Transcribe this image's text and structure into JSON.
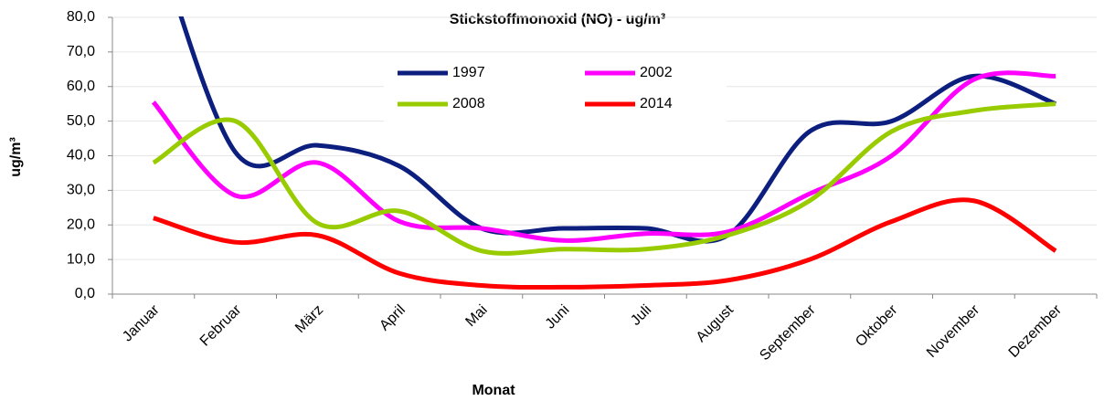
{
  "chart_data": {
    "type": "line",
    "title": "Stickstoffmonoxid (NO) - ug/m³",
    "x_label": "Monat",
    "y_label": "ug/m³",
    "categories": [
      "Januar",
      "Februar",
      "März",
      "April",
      "Mai",
      "Juni",
      "Juli",
      "August",
      "September",
      "Oktober",
      "November",
      "Dezember"
    ],
    "series": [
      {
        "name": "1997",
        "color": "#0c1f7e",
        "values": [
          105,
          41,
          43,
          37,
          19,
          19,
          19,
          17,
          47,
          50,
          63,
          55
        ]
      },
      {
        "name": "2002",
        "color": "#ff00ff",
        "values": [
          55.5,
          28.5,
          38,
          21,
          19,
          15.5,
          17.5,
          18,
          29,
          40,
          62,
          63
        ]
      },
      {
        "name": "2008",
        "color": "#99cc00",
        "values": [
          38,
          50,
          20.5,
          24,
          12.5,
          13,
          13,
          17,
          27,
          47,
          53,
          55
        ]
      },
      {
        "name": "2014",
        "color": "#ff0000",
        "values": [
          22,
          15,
          17,
          6,
          2.5,
          2,
          2.5,
          4,
          10,
          21,
          27,
          12.5
        ]
      }
    ],
    "ylim": [
      0,
      80
    ],
    "yticks": [
      {
        "value": 0,
        "label": "0,0"
      },
      {
        "value": 10,
        "label": "10,0"
      },
      {
        "value": 20,
        "label": "20,0"
      },
      {
        "value": 30,
        "label": "30,0"
      },
      {
        "value": 40,
        "label": "40,0"
      },
      {
        "value": 50,
        "label": "50,0"
      },
      {
        "value": 60,
        "label": "60,0"
      },
      {
        "value": 70,
        "label": "70,0"
      },
      {
        "value": 80,
        "label": "80,0"
      }
    ],
    "grid": true,
    "smooth": true
  }
}
